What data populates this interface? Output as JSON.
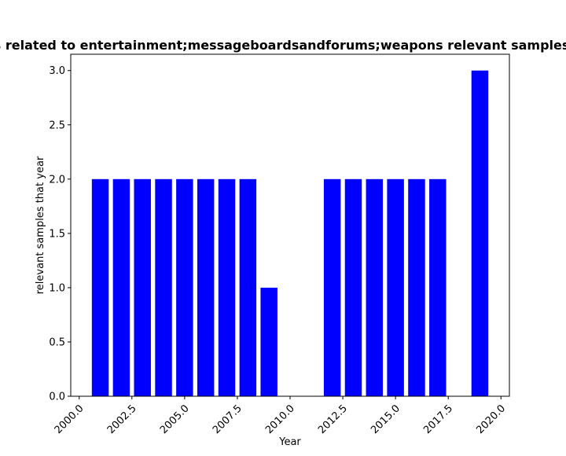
{
  "chart_data": {
    "type": "bar",
    "title": "Samples related to entertainment;messageboardsandforums;weapons relevant samples that year",
    "xlabel": "Year",
    "ylabel": "relevant samples that year",
    "x": [
      2001,
      2002,
      2003,
      2004,
      2005,
      2006,
      2007,
      2008,
      2009,
      2012,
      2013,
      2014,
      2015,
      2016,
      2017,
      2019
    ],
    "values": [
      2,
      2,
      2,
      2,
      2,
      2,
      2,
      2,
      1,
      2,
      2,
      2,
      2,
      2,
      2,
      3
    ],
    "bar_color": "#0000ff",
    "xlim": [
      1999.6,
      2020.4
    ],
    "ylim": [
      0,
      3.15
    ],
    "xticks": [
      "2000.0",
      "2002.5",
      "2005.0",
      "2007.5",
      "2010.0",
      "2012.5",
      "2015.0",
      "2017.5",
      "2020.0"
    ],
    "xtick_values": [
      2000,
      2002.5,
      2005,
      2007.5,
      2010,
      2012.5,
      2015,
      2017.5,
      2020
    ],
    "yticks": [
      "0.0",
      "0.5",
      "1.0",
      "1.5",
      "2.0",
      "2.5",
      "3.0"
    ],
    "ytick_values": [
      0,
      0.5,
      1,
      1.5,
      2,
      2.5,
      3
    ],
    "grid": false,
    "legend": "none"
  }
}
